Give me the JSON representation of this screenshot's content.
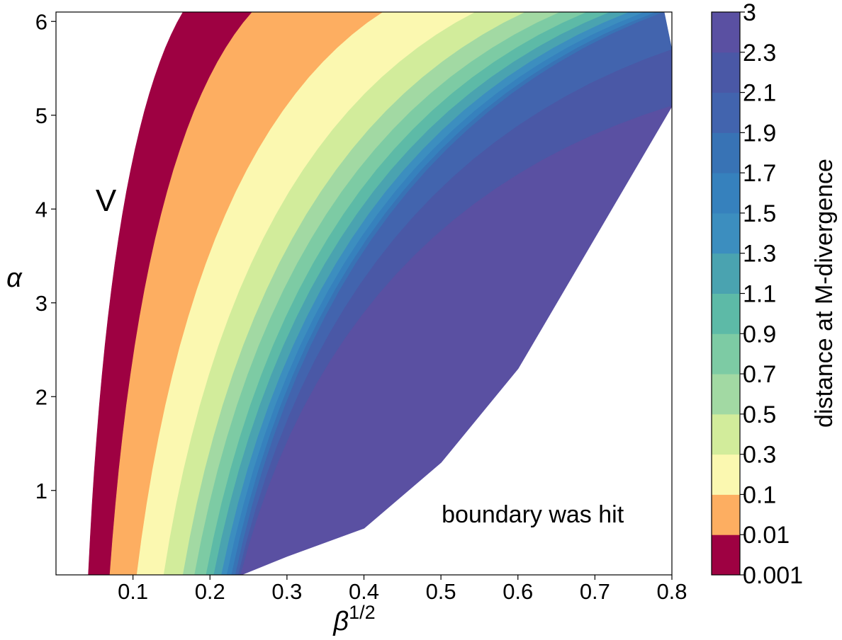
{
  "chart_data": {
    "type": "contourf",
    "xlabel_base": "β",
    "xlabel_sup": "1/2",
    "ylabel": "α",
    "xlim": [
      0.0,
      0.8
    ],
    "ylim": [
      0.1,
      6.1
    ],
    "x_ticks": [
      "0.1",
      "0.2",
      "0.3",
      "0.4",
      "0.5",
      "0.6",
      "0.7",
      "0.8"
    ],
    "x_tick_values": [
      0.1,
      0.2,
      0.3,
      0.4,
      0.5,
      0.6,
      0.7,
      0.8
    ],
    "y_ticks": [
      "1",
      "2",
      "3",
      "4",
      "5",
      "6"
    ],
    "y_tick_values": [
      1,
      2,
      3,
      4,
      5,
      6
    ],
    "annotations": [
      {
        "text": "V",
        "x": 0.065,
        "y": 4.1
      },
      {
        "text": "boundary was hit",
        "x": 0.5,
        "y": 0.75
      }
    ],
    "colorbar": {
      "label": "distance at M-divergence",
      "levels": [
        "0.001",
        "0.01",
        "0.1",
        "0.3",
        "0.5",
        "0.7",
        "0.9",
        "1.1",
        "1.3",
        "1.5",
        "1.7",
        "1.9",
        "2.1",
        "2.3",
        "3"
      ],
      "colors": [
        "#9e0142",
        "#fdae61",
        "#fbf8b0",
        "#d2ec9b",
        "#a2d9a3",
        "#7dcba4",
        "#5dbaa7",
        "#4aa3b0",
        "#3c8ebf",
        "#3681bd",
        "#3873b5",
        "#4264ae",
        "#4a58a6",
        "#5a50a2"
      ]
    },
    "region_boundaries": [
      {
        "level": "0.001",
        "alpha_low": {
          "beta_sqrt": 0.042,
          "alpha": 0.1
        },
        "alpha_high": {
          "beta_sqrt": 0.165,
          "alpha": 6.1
        }
      },
      {
        "level": "0.01",
        "alpha_low": {
          "beta_sqrt": 0.07,
          "alpha": 0.1
        },
        "alpha_high": {
          "beta_sqrt": 0.255,
          "alpha": 6.1
        }
      },
      {
        "level": "0.1",
        "alpha_low": {
          "beta_sqrt": 0.105,
          "alpha": 0.1
        },
        "alpha_high": {
          "beta_sqrt": 0.425,
          "alpha": 6.1
        }
      },
      {
        "level": "0.3",
        "alpha_low": {
          "beta_sqrt": 0.14,
          "alpha": 0.1
        },
        "alpha_high": {
          "beta_sqrt": 0.545,
          "alpha": 6.1
        }
      },
      {
        "level": "0.5",
        "alpha_low": {
          "beta_sqrt": 0.165,
          "alpha": 0.1
        },
        "alpha_high": {
          "beta_sqrt": 0.61,
          "alpha": 6.1
        }
      },
      {
        "level": "0.7",
        "alpha_low": {
          "beta_sqrt": 0.18,
          "alpha": 0.1
        },
        "alpha_high": {
          "beta_sqrt": 0.655,
          "alpha": 6.1
        }
      },
      {
        "level": "0.9",
        "alpha_low": {
          "beta_sqrt": 0.195,
          "alpha": 0.1
        },
        "alpha_high": {
          "beta_sqrt": 0.69,
          "alpha": 6.1
        }
      },
      {
        "level": "1.1",
        "alpha_low": {
          "beta_sqrt": 0.205,
          "alpha": 0.1
        },
        "alpha_high": {
          "beta_sqrt": 0.72,
          "alpha": 6.1
        }
      },
      {
        "level": "1.3",
        "alpha_low": {
          "beta_sqrt": 0.215,
          "alpha": 0.1
        },
        "alpha_high": {
          "beta_sqrt": 0.745,
          "alpha": 6.1
        }
      },
      {
        "level": "1.5",
        "alpha_low": {
          "beta_sqrt": 0.222,
          "alpha": 0.1
        },
        "alpha_high": {
          "beta_sqrt": 0.765,
          "alpha": 6.1
        }
      },
      {
        "level": "1.7",
        "alpha_low": {
          "beta_sqrt": 0.228,
          "alpha": 0.1
        },
        "alpha_high": {
          "beta_sqrt": 0.78,
          "alpha": 6.1
        }
      },
      {
        "level": "1.9",
        "alpha_low": {
          "beta_sqrt": 0.233,
          "alpha": 0.1
        },
        "alpha_high": {
          "beta_sqrt": 0.79,
          "alpha": 6.1
        }
      },
      {
        "level": "2.1",
        "alpha_low": {
          "beta_sqrt": 0.237,
          "alpha": 0.1
        },
        "alpha_high": {
          "beta_sqrt": 0.8,
          "alpha": 5.7
        }
      },
      {
        "level": "2.3",
        "alpha_low": {
          "beta_sqrt": 0.24,
          "alpha": 0.1
        },
        "alpha_high": {
          "beta_sqrt": 0.8,
          "alpha": 5.1
        }
      }
    ],
    "outer_boundary": [
      {
        "beta_sqrt": 0.24,
        "alpha": 0.1
      },
      {
        "beta_sqrt": 0.3,
        "alpha": 0.3
      },
      {
        "beta_sqrt": 0.4,
        "alpha": 0.6
      },
      {
        "beta_sqrt": 0.5,
        "alpha": 1.3
      },
      {
        "beta_sqrt": 0.6,
        "alpha": 2.3
      },
      {
        "beta_sqrt": 0.7,
        "alpha": 3.7
      },
      {
        "beta_sqrt": 0.8,
        "alpha": 5.1
      }
    ]
  }
}
